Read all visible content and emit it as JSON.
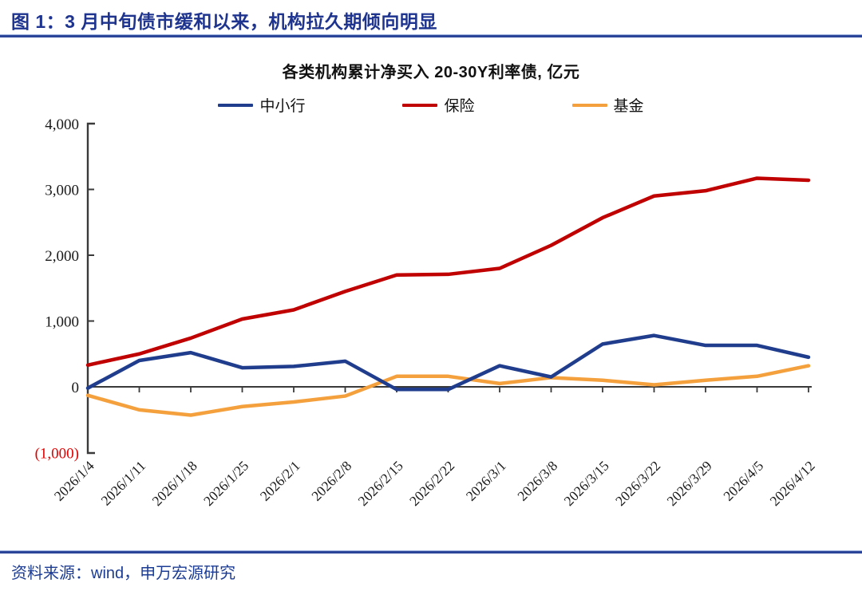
{
  "header": {
    "title": "图 1：3 月中旬债市缓和以来，机构拉久期倾向明显"
  },
  "chart_data": {
    "type": "line",
    "title": "各类机构累计净买入 20-30Y利率债, 亿元",
    "categories": [
      "2026/1/4",
      "2026/1/11",
      "2026/1/18",
      "2026/1/25",
      "2026/2/1",
      "2026/2/8",
      "2026/2/15",
      "2026/2/22",
      "2026/3/1",
      "2026/3/8",
      "2026/3/15",
      "2026/3/22",
      "2026/3/29",
      "2026/4/5",
      "2026/4/12"
    ],
    "series": [
      {
        "name": "中小行",
        "color": "#1f3d8c",
        "values": [
          -20,
          400,
          520,
          290,
          310,
          390,
          -40,
          -40,
          320,
          150,
          650,
          780,
          630,
          630,
          450
        ]
      },
      {
        "name": "保险",
        "color": "#c00000",
        "values": [
          330,
          500,
          740,
          1030,
          1170,
          1450,
          1700,
          1710,
          1800,
          2150,
          2570,
          2900,
          2980,
          3170,
          3140
        ]
      },
      {
        "name": "基金",
        "color": "#f4a03d",
        "values": [
          -130,
          -350,
          -430,
          -300,
          -230,
          -140,
          160,
          160,
          50,
          140,
          100,
          30,
          100,
          160,
          320
        ]
      }
    ],
    "ylim": [
      -1000,
      4000
    ],
    "ytick_values": [
      4000,
      3000,
      2000,
      1000,
      0,
      -1000
    ],
    "ytick_labels": [
      "4,000",
      "3,000",
      "2,000",
      "1,000",
      "0",
      "(1,000)"
    ],
    "negative_tick_color": "#e00000",
    "axis_color": "#3a3a3a",
    "label_color": "#1a1a1a",
    "grid": false,
    "legend_position": "top",
    "xlabel": "",
    "ylabel": ""
  },
  "footer": {
    "source": "资料来源：wind，申万宏源研究"
  }
}
